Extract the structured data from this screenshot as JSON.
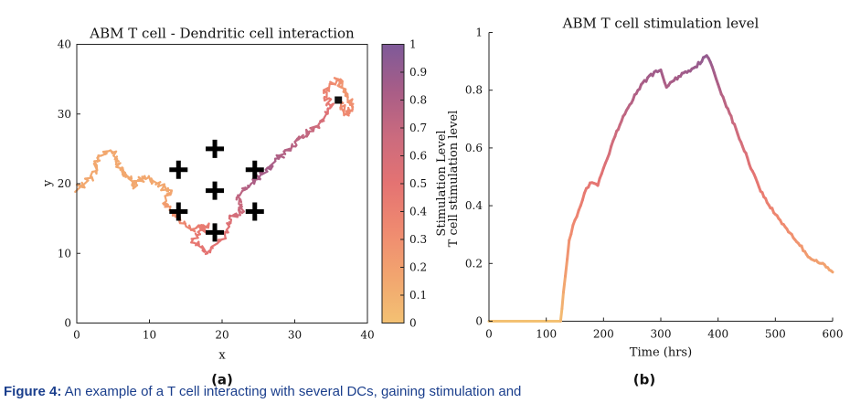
{
  "chart_data": [
    {
      "type": "scatter",
      "title": "ABM T cell - Dendritic cell interaction",
      "xlabel": "x",
      "ylabel": "y",
      "xlim": [
        0,
        40
      ],
      "ylim": [
        0,
        40
      ],
      "xticks": [
        "0",
        "10",
        "20",
        "30",
        "40"
      ],
      "yticks": [
        "0",
        "10",
        "20",
        "30",
        "40"
      ],
      "panel_label": "(a)",
      "trajectory_path": [
        [
          0,
          19,
          0.15
        ],
        [
          2,
          21,
          0.15
        ],
        [
          3,
          24,
          0.15
        ],
        [
          5,
          24.5,
          0.15
        ],
        [
          6,
          22,
          0.15
        ],
        [
          7,
          21,
          0.15
        ],
        [
          8,
          19.5,
          0.15
        ],
        [
          9,
          21,
          0.15
        ],
        [
          11,
          20,
          0.15
        ],
        [
          13,
          19,
          0.15
        ],
        [
          12,
          17,
          0.2
        ],
        [
          14,
          15,
          0.3
        ],
        [
          16,
          13.5,
          0.4
        ],
        [
          18,
          14,
          0.45
        ],
        [
          16,
          12,
          0.45
        ],
        [
          18,
          10,
          0.5
        ],
        [
          20,
          12,
          0.5
        ],
        [
          21,
          15,
          0.55
        ],
        [
          23,
          16,
          0.65
        ],
        [
          22,
          18,
          0.7
        ],
        [
          24,
          20,
          0.8
        ],
        [
          26,
          22,
          0.85
        ],
        [
          28,
          24,
          0.8
        ],
        [
          30,
          26,
          0.75
        ],
        [
          32,
          27.5,
          0.7
        ],
        [
          34,
          29,
          0.6
        ],
        [
          35,
          31,
          0.5
        ],
        [
          34,
          33,
          0.4
        ],
        [
          36,
          35,
          0.3
        ],
        [
          37,
          33,
          0.25
        ],
        [
          38,
          31,
          0.3
        ],
        [
          37,
          30,
          0.35
        ],
        [
          36,
          32,
          0.3
        ]
      ],
      "dendritic_cells": [
        [
          14,
          22
        ],
        [
          19,
          25
        ],
        [
          24.5,
          22
        ],
        [
          19,
          19
        ],
        [
          14,
          16
        ],
        [
          24.5,
          16
        ],
        [
          19,
          13
        ]
      ],
      "end_marker": [
        36,
        32
      ],
      "colorbar": {
        "label": "Stimulation Level",
        "ticks": [
          "0",
          "0.1",
          "0.2",
          "0.3",
          "0.4",
          "0.5",
          "0.6",
          "0.7",
          "0.8",
          "0.9",
          "1"
        ],
        "range": [
          0,
          1
        ],
        "colors": [
          "#f3c173",
          "#f2a56f",
          "#ef8a70",
          "#e47372",
          "#cb6b7e",
          "#a85d87",
          "#7e5a99"
        ]
      }
    },
    {
      "type": "line",
      "title": "ABM T cell stimulation level",
      "xlabel": "Time (hrs)",
      "ylabel": "T cell stimulation level",
      "xlim": [
        0,
        600
      ],
      "ylim": [
        0,
        1
      ],
      "xticks": [
        "0",
        "100",
        "200",
        "300",
        "400",
        "500",
        "600"
      ],
      "yticks": [
        "0",
        "0.2",
        "0.4",
        "0.6",
        "0.8",
        "1"
      ],
      "panel_label": "(b)",
      "x": [
        0,
        125,
        130,
        140,
        150,
        160,
        170,
        180,
        190,
        200,
        210,
        220,
        240,
        260,
        280,
        300,
        310,
        320,
        340,
        360,
        380,
        390,
        400,
        420,
        440,
        460,
        480,
        500,
        520,
        540,
        560,
        580,
        600
      ],
      "y": [
        0,
        0,
        0.1,
        0.28,
        0.35,
        0.4,
        0.46,
        0.48,
        0.47,
        0.53,
        0.58,
        0.64,
        0.73,
        0.8,
        0.85,
        0.87,
        0.81,
        0.83,
        0.86,
        0.88,
        0.92,
        0.88,
        0.82,
        0.72,
        0.62,
        0.52,
        0.43,
        0.37,
        0.32,
        0.27,
        0.22,
        0.2,
        0.17
      ]
    }
  ],
  "caption": {
    "lead": "Figure 4:",
    "text": " An example of a T cell interacting with several DCs, gaining stimulation and"
  }
}
